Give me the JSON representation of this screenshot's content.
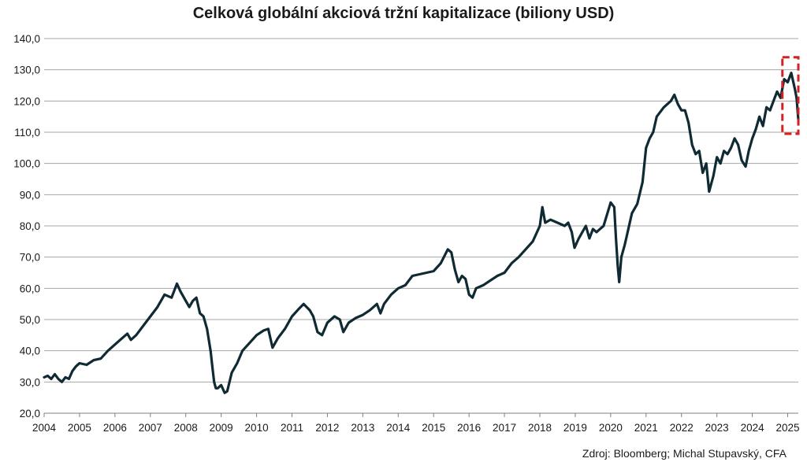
{
  "chart_data": {
    "type": "line",
    "title": "Celková globální akciová tržní kapitalizace (biliony USD)",
    "source": "Zdroj: Bloomberg; Michal Stupavský, CFA",
    "xlabel": "",
    "ylabel": "",
    "xlim": [
      2004.0,
      2025.3
    ],
    "ylim": [
      20,
      140
    ],
    "grid": true,
    "y_ticks": [
      "20,0",
      "30,0",
      "40,0",
      "50,0",
      "60,0",
      "70,0",
      "80,0",
      "90,0",
      "100,0",
      "110,0",
      "120,0",
      "130,0",
      "140,0"
    ],
    "x_ticks": [
      "2004",
      "2005",
      "2006",
      "2007",
      "2008",
      "2009",
      "2010",
      "2011",
      "2012",
      "2013",
      "2014",
      "2015",
      "2016",
      "2017",
      "2018",
      "2019",
      "2020",
      "2021",
      "2022",
      "2023",
      "2024",
      "2025"
    ],
    "colors": {
      "line": "#0f2a33",
      "highlight": "#d42020",
      "grid": "#a6a6a6"
    },
    "highlight_box": {
      "x": [
        2024.85,
        2025.3
      ],
      "y": [
        109.5,
        134
      ]
    },
    "series": [
      {
        "x": [
          2004.0,
          2004.1,
          2004.2,
          2004.3,
          2004.4,
          2004.5,
          2004.6,
          2004.7,
          2004.8,
          2004.9,
          2005.0,
          2005.2,
          2005.4,
          2005.6,
          2005.8,
          2006.0,
          2006.2,
          2006.35,
          2006.45,
          2006.6,
          2006.8,
          2007.0,
          2007.2,
          2007.4,
          2007.6,
          2007.75,
          2007.85,
          2008.0,
          2008.1,
          2008.2,
          2008.3,
          2008.4,
          2008.5,
          2008.6,
          2008.7,
          2008.75,
          2008.8,
          2008.85,
          2008.9,
          2009.0,
          2009.1,
          2009.17,
          2009.3,
          2009.45,
          2009.6,
          2009.8,
          2010.0,
          2010.2,
          2010.33,
          2010.45,
          2010.6,
          2010.8,
          2011.0,
          2011.2,
          2011.33,
          2011.5,
          2011.6,
          2011.72,
          2011.85,
          2012.0,
          2012.2,
          2012.35,
          2012.45,
          2012.6,
          2012.8,
          2013.0,
          2013.2,
          2013.4,
          2013.5,
          2013.6,
          2013.8,
          2014.0,
          2014.2,
          2014.4,
          2014.6,
          2014.8,
          2015.0,
          2015.2,
          2015.4,
          2015.5,
          2015.6,
          2015.7,
          2015.8,
          2015.9,
          2016.0,
          2016.1,
          2016.2,
          2016.4,
          2016.6,
          2016.8,
          2017.0,
          2017.2,
          2017.4,
          2017.6,
          2017.8,
          2018.0,
          2018.07,
          2018.15,
          2018.3,
          2018.5,
          2018.7,
          2018.8,
          2018.9,
          2018.98,
          2019.1,
          2019.3,
          2019.4,
          2019.5,
          2019.6,
          2019.8,
          2020.0,
          2020.1,
          2020.15,
          2020.2,
          2020.24,
          2020.3,
          2020.4,
          2020.5,
          2020.6,
          2020.75,
          2020.9,
          2021.0,
          2021.1,
          2021.2,
          2021.3,
          2021.5,
          2021.7,
          2021.8,
          2021.9,
          2022.0,
          2022.1,
          2022.2,
          2022.3,
          2022.4,
          2022.5,
          2022.6,
          2022.7,
          2022.78,
          2022.9,
          2023.0,
          2023.1,
          2023.2,
          2023.3,
          2023.4,
          2023.5,
          2023.6,
          2023.7,
          2023.81,
          2023.9,
          2024.0,
          2024.1,
          2024.2,
          2024.3,
          2024.4,
          2024.5,
          2024.6,
          2024.7,
          2024.8,
          2024.9,
          2025.0,
          2025.1,
          2025.2,
          2025.25,
          2025.3
        ],
        "values": [
          31.5,
          32.0,
          31.0,
          32.5,
          31.0,
          30.0,
          31.5,
          31.0,
          33.5,
          35.0,
          36.0,
          35.5,
          37.0,
          37.5,
          40.0,
          42.0,
          44.0,
          45.5,
          43.5,
          45.0,
          48.0,
          51.0,
          54.0,
          58.0,
          57.0,
          61.5,
          59.0,
          56.0,
          54.0,
          56.0,
          57.0,
          52.0,
          51.0,
          47.0,
          40.0,
          35.0,
          30.0,
          28.0,
          28.0,
          29.0,
          26.5,
          27.0,
          33.0,
          36.0,
          40.0,
          42.5,
          45.0,
          46.5,
          47.0,
          41.0,
          44.0,
          47.0,
          51.0,
          53.5,
          55.0,
          53.0,
          51.0,
          46.0,
          45.0,
          49.0,
          51.0,
          50.0,
          46.0,
          49.0,
          50.5,
          51.5,
          53.0,
          55.0,
          52.0,
          55.0,
          58.0,
          60.0,
          61.0,
          64.0,
          64.5,
          65.0,
          65.5,
          68.0,
          72.5,
          71.5,
          66.0,
          62.0,
          64.0,
          63.0,
          58.0,
          57.0,
          60.0,
          61.0,
          62.5,
          64.0,
          65.0,
          68.0,
          70.0,
          72.5,
          75.0,
          80.0,
          86.0,
          81.0,
          82.0,
          81.0,
          80.0,
          81.0,
          78.0,
          73.0,
          76.0,
          80.0,
          76.0,
          79.0,
          78.0,
          80.0,
          87.5,
          86.0,
          76.0,
          67.0,
          62.0,
          70.0,
          74.0,
          79.0,
          84.0,
          87.0,
          94.0,
          105.0,
          108.0,
          110.0,
          115.0,
          118.0,
          120.0,
          122.0,
          119.0,
          117.0,
          117.0,
          113.0,
          106.0,
          103.0,
          104.0,
          97.0,
          100.0,
          91.0,
          96.0,
          102.0,
          100.0,
          104.0,
          103.0,
          105.0,
          108.0,
          106.0,
          101.0,
          99.0,
          104.0,
          108.0,
          111.0,
          115.0,
          112.0,
          118.0,
          117.0,
          120.0,
          123.0,
          121.0,
          127.0,
          126.0,
          129.0,
          124.0,
          121.0,
          114.0
        ]
      }
    ]
  }
}
